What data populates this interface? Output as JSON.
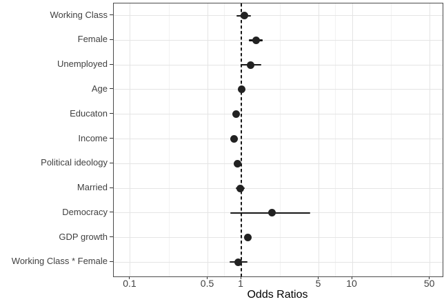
{
  "chart_data": {
    "type": "scatter",
    "subtype": "forest-plot-odds-ratios",
    "title": "",
    "xlabel": "Odds Ratios",
    "x_scale": "log10",
    "x_domain": [
      0.071,
      65
    ],
    "x_ticks": [
      0.1,
      0.5,
      1,
      5,
      10,
      50
    ],
    "x_tick_labels": [
      "0.1",
      "0.5",
      "1",
      "5",
      "10",
      "50"
    ],
    "x_minor_gridlines": [
      0.2236,
      0.7071,
      2.2361,
      7.0711,
      22.3607
    ],
    "reference_line": 1,
    "grid": "on",
    "legend": "none",
    "rows": [
      {
        "label": "Working Class",
        "or": 1.06,
        "ci_low": 0.9,
        "ci_high": 1.23
      },
      {
        "label": "Female",
        "or": 1.35,
        "ci_low": 1.17,
        "ci_high": 1.55
      },
      {
        "label": "Unemployed",
        "or": 1.22,
        "ci_low": 0.98,
        "ci_high": 1.52
      },
      {
        "label": "Age",
        "or": 1.0,
        "ci_low": 0.99,
        "ci_high": 1.01
      },
      {
        "label": "Educaton",
        "or": 0.9,
        "ci_low": 0.87,
        "ci_high": 0.92
      },
      {
        "label": "Income",
        "or": 0.86,
        "ci_low": 0.84,
        "ci_high": 0.89
      },
      {
        "label": "Political ideology",
        "or": 0.92,
        "ci_low": 0.89,
        "ci_high": 0.94
      },
      {
        "label": "Married",
        "or": 0.98,
        "ci_low": 0.89,
        "ci_high": 1.08
      },
      {
        "label": "Democracy",
        "or": 1.9,
        "ci_low": 0.8,
        "ci_high": 4.19
      },
      {
        "label": "GDP growth",
        "or": 1.14,
        "ci_low": 1.11,
        "ci_high": 1.17
      },
      {
        "label": "Working Class * Female",
        "or": 0.94,
        "ci_low": 0.78,
        "ci_high": 1.14
      }
    ],
    "colors": {
      "point": "#222222",
      "ci_line": "#161616",
      "reference_line": "#161616",
      "grid_major": "#e4e4e4",
      "grid_minor": "#f1f1f1",
      "axis_text": "#404040",
      "axis_title": "#000000",
      "panel_border": "#4a4a4a",
      "background": "#ffffff"
    }
  }
}
